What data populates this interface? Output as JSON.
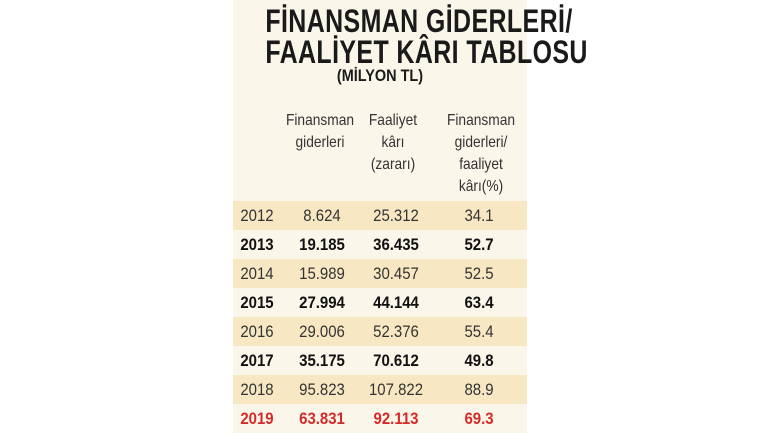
{
  "title_line1": "FİNANSMAN GİDERLERİ/",
  "title_line2": "FAALİYET KÂRI TABLOSU",
  "subtitle": "(MİLYON TL)",
  "headers": [
    {
      "line1": "Finansman",
      "line2": "giderleri",
      "line3": "",
      "line4": ""
    },
    {
      "line1": "Faaliyet",
      "line2": "kârı",
      "line3": "(zararı)",
      "line4": ""
    },
    {
      "line1": "Finansman",
      "line2": "giderleri/",
      "line3": "faaliyet",
      "line4": "kârı(%)"
    }
  ],
  "rows": [
    {
      "year": "2012",
      "finansman": "8.624",
      "faaliyet": "25.312",
      "oran": "34.1",
      "style": "light"
    },
    {
      "year": "2013",
      "finansman": "19.185",
      "faaliyet": "36.435",
      "oran": "52.7",
      "style": "bold"
    },
    {
      "year": "2014",
      "finansman": "15.989",
      "faaliyet": "30.457",
      "oran": "52.5",
      "style": "light"
    },
    {
      "year": "2015",
      "finansman": "27.994",
      "faaliyet": "44.144",
      "oran": "63.4",
      "style": "bold"
    },
    {
      "year": "2016",
      "finansman": "29.006",
      "faaliyet": "52.376",
      "oran": "55.4",
      "style": "light"
    },
    {
      "year": "2017",
      "finansman": "35.175",
      "faaliyet": "70.612",
      "oran": "49.8",
      "style": "bold"
    },
    {
      "year": "2018",
      "finansman": "95.823",
      "faaliyet": "107.822",
      "oran": "88.9",
      "style": "light"
    },
    {
      "year": "2019",
      "finansman": "63.831",
      "faaliyet": "92.113",
      "oran": "69.3",
      "style": "red"
    }
  ],
  "colors": {
    "panel_background": "#fbf6ea",
    "row_shade": "#f7e7c2",
    "highlight_red": "#d42a2a"
  }
}
